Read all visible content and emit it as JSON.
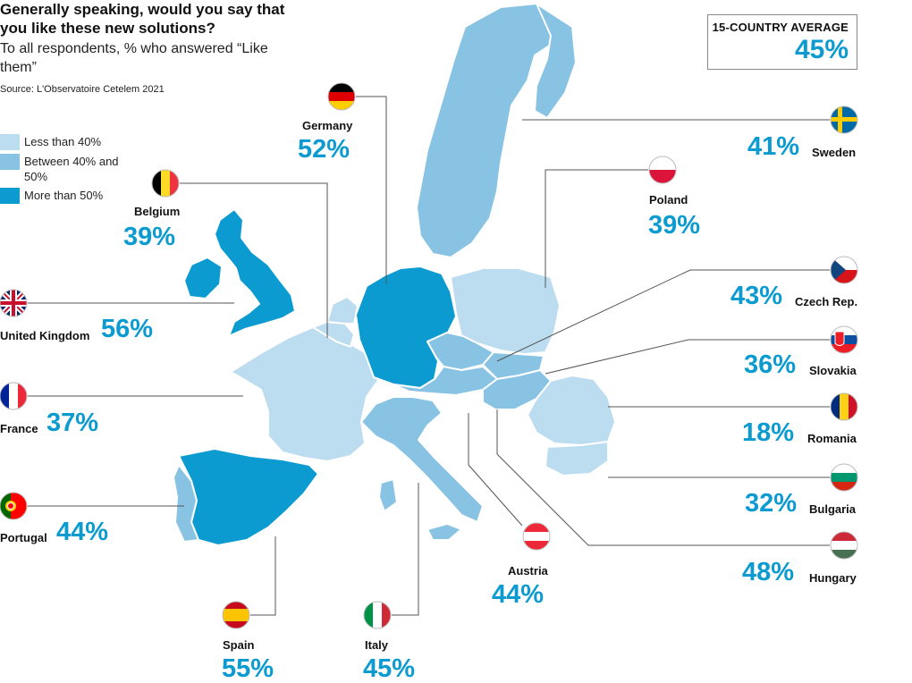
{
  "header": {
    "title": "Generally speaking, would you say that you like these new solutions?",
    "subtitle": "To all respondents, % who answered “Like them”",
    "source": "Source: L'Observatoire Cetelem 2021"
  },
  "average": {
    "label": "15-COUNTRY AVERAGE",
    "value": "45%"
  },
  "legend": [
    {
      "label": "Less than 40%",
      "color": "#bcdcf0"
    },
    {
      "label": "Between 40% and 50%",
      "color": "#88c3e3"
    },
    {
      "label": "More than 50%",
      "color": "#0b9bd0"
    }
  ],
  "colors": {
    "accent": "#0b9bd0",
    "light": "#bcdcf0",
    "mid": "#88c3e3",
    "dark": "#0b9bd0",
    "leader": "#555555"
  },
  "countries": [
    {
      "id": "germany",
      "name": "Germany",
      "value": 52,
      "display": "52%",
      "flag": "flag-de-icon"
    },
    {
      "id": "belgium",
      "name": "Belgium",
      "value": 39,
      "display": "39%",
      "flag": "flag-be-icon"
    },
    {
      "id": "united-kingdom",
      "name": "United Kingdom",
      "value": 56,
      "display": "56%",
      "flag": "flag-gb-icon"
    },
    {
      "id": "france",
      "name": "France",
      "value": 37,
      "display": "37%",
      "flag": "flag-fr-icon"
    },
    {
      "id": "portugal",
      "name": "Portugal",
      "value": 44,
      "display": "44%",
      "flag": "flag-pt-icon"
    },
    {
      "id": "spain",
      "name": "Spain",
      "value": 55,
      "display": "55%",
      "flag": "flag-es-icon"
    },
    {
      "id": "italy",
      "name": "Italy",
      "value": 45,
      "display": "45%",
      "flag": "flag-it-icon"
    },
    {
      "id": "austria",
      "name": "Austria",
      "value": 44,
      "display": "44%",
      "flag": "flag-at-icon"
    },
    {
      "id": "sweden",
      "name": "Sweden",
      "value": 41,
      "display": "41%",
      "flag": "flag-se-icon"
    },
    {
      "id": "poland",
      "name": "Poland",
      "value": 39,
      "display": "39%",
      "flag": "flag-pl-icon"
    },
    {
      "id": "czech-rep",
      "name": "Czech Rep.",
      "value": 43,
      "display": "43%",
      "flag": "flag-cz-icon"
    },
    {
      "id": "slovakia",
      "name": "Slovakia",
      "value": 36,
      "display": "36%",
      "flag": "flag-sk-icon"
    },
    {
      "id": "romania",
      "name": "Romania",
      "value": 18,
      "display": "18%",
      "flag": "flag-ro-icon"
    },
    {
      "id": "bulgaria",
      "name": "Bulgaria",
      "value": 32,
      "display": "32%",
      "flag": "flag-bg-icon"
    },
    {
      "id": "hungary",
      "name": "Hungary",
      "value": 48,
      "display": "48%",
      "flag": "flag-hu-icon"
    }
  ]
}
